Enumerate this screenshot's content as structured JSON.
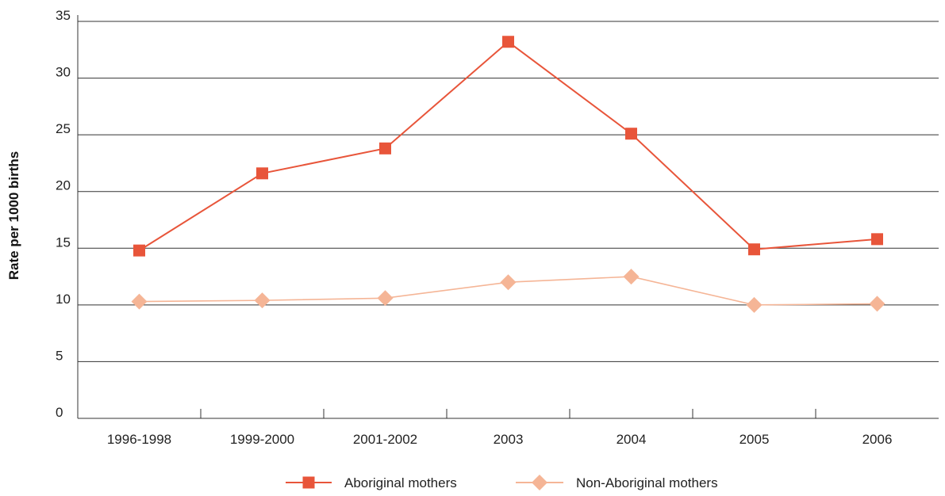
{
  "chart_data": {
    "type": "line",
    "title": "",
    "xlabel": "",
    "ylabel": "Rate per 1000 births",
    "categories": [
      "1996-1998",
      "1999-2000",
      "2001-2002",
      "2003",
      "2004",
      "2005",
      "2006"
    ],
    "ylim": [
      0,
      35
    ],
    "yticks": [
      0,
      5,
      10,
      15,
      20,
      25,
      30,
      35
    ],
    "grid": "horizontal",
    "legend_position": "bottom-center",
    "series": [
      {
        "name": "Aboriginal mothers",
        "marker": "square",
        "color": "#e8553a",
        "values": [
          14.8,
          21.6,
          23.8,
          33.2,
          25.1,
          14.9,
          15.8
        ]
      },
      {
        "name": "Non-Aboriginal mothers",
        "marker": "diamond",
        "color": "#f5b596",
        "values": [
          10.3,
          10.4,
          10.6,
          12.0,
          12.5,
          10.0,
          10.1
        ]
      }
    ]
  }
}
